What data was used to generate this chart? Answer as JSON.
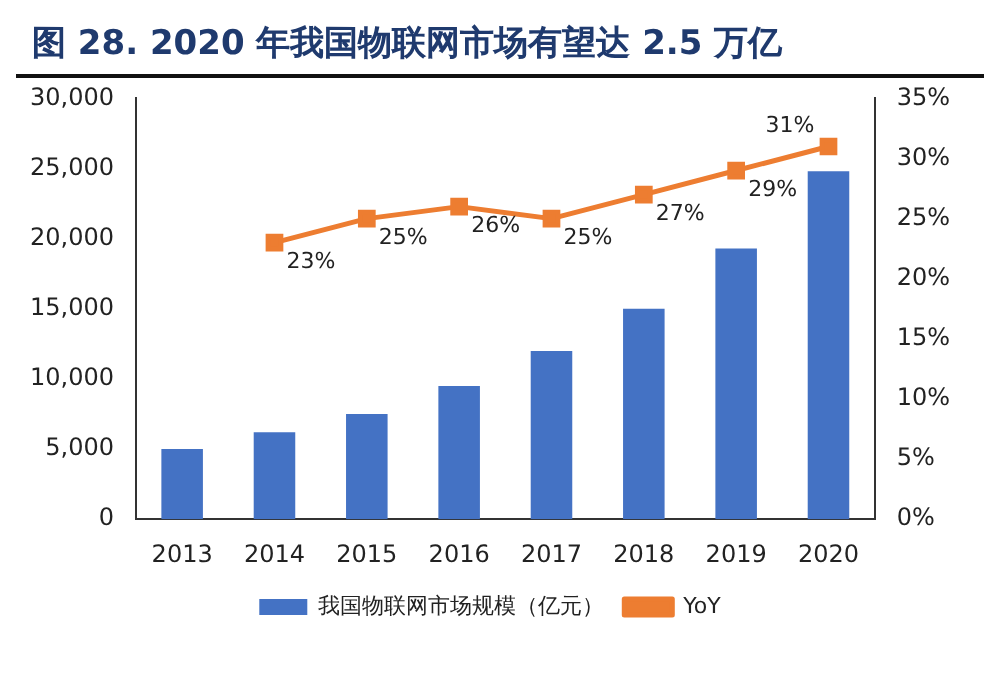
{
  "chart_data": {
    "type": "bar",
    "title": "图 28. 2020 年我国物联网市场有望达 2.5 万亿",
    "categories": [
      "2013",
      "2014",
      "2015",
      "2016",
      "2017",
      "2018",
      "2019",
      "2020"
    ],
    "series": [
      {
        "name": "我国物联网市场规模（亿元）",
        "color": "#4472c4",
        "values": [
          5000,
          6200,
          7500,
          9500,
          12000,
          15000,
          19300,
          24800
        ]
      },
      {
        "name": "YoY",
        "type": "line",
        "axis": "y2",
        "color": "#ed7d31",
        "marker": "square",
        "values": [
          null,
          23,
          25,
          26,
          25,
          27,
          29,
          31
        ],
        "value_labels": [
          null,
          "23%",
          "25%",
          "26%",
          "25%",
          "27%",
          "29%",
          "31%"
        ]
      }
    ],
    "ylim": [
      0,
      30000
    ],
    "yticks": [
      {
        "value": 0,
        "label": "0"
      },
      {
        "value": 5000,
        "label": "5,000"
      },
      {
        "value": 10000,
        "label": "10,000"
      },
      {
        "value": 15000,
        "label": "15,000"
      },
      {
        "value": 20000,
        "label": "20,000"
      },
      {
        "value": 25000,
        "label": "25,000"
      },
      {
        "value": 30000,
        "label": "30,000"
      }
    ],
    "y2lim": [
      0,
      35
    ],
    "y2ticks": [
      {
        "value": 0,
        "label": "0%"
      },
      {
        "value": 5,
        "label": "5%"
      },
      {
        "value": 10,
        "label": "10%"
      },
      {
        "value": 15,
        "label": "15%"
      },
      {
        "value": 20,
        "label": "20%"
      },
      {
        "value": 25,
        "label": "25%"
      },
      {
        "value": 30,
        "label": "30%"
      },
      {
        "value": 35,
        "label": "35%"
      }
    ],
    "grid": false,
    "legend": "bottom"
  }
}
